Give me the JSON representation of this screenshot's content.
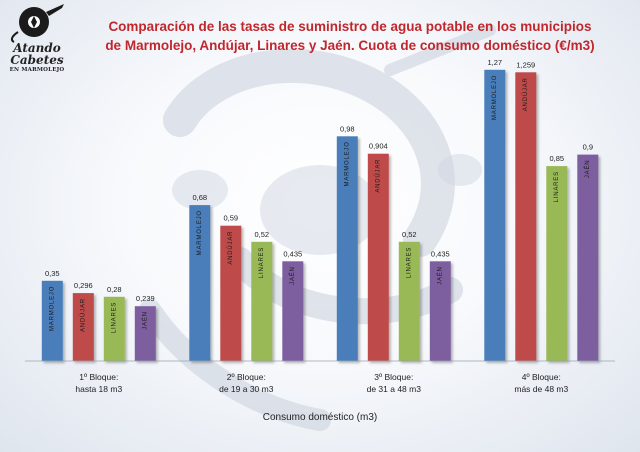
{
  "logo": {
    "line1": "Atando",
    "line2": "Cabetes",
    "line3": "EN MARMOLEJO"
  },
  "chart_data": {
    "type": "bar",
    "title": [
      "Comparación de las tasas de suministro de agua potable en los municipios",
      "de Marmolejo, Andújar, Linares y Jaén. Cuota de consumo doméstico (€/m3)"
    ],
    "xlabel": "Consumo doméstico (m3)",
    "ylabel": "",
    "ylim": [
      0,
      1.4
    ],
    "grid": false,
    "legend": "none",
    "categories": [
      [
        "1º Bloque:",
        "hasta 18 m3"
      ],
      [
        "2º Bloque:",
        "de 19 a 30 m3"
      ],
      [
        "3º Bloque:",
        "de 31 a 48 m3"
      ],
      [
        "4º Bloque:",
        "más de 48 m3"
      ]
    ],
    "series": [
      {
        "name": "MARMOLEJO",
        "color": "#4a7ebb",
        "values": [
          0.35,
          0.68,
          0.98,
          1.27
        ],
        "labels": [
          "0,35",
          "0,68",
          "0,98",
          "1,27"
        ]
      },
      {
        "name": "ANDÚJAR",
        "color": "#be4b48",
        "values": [
          0.296,
          0.59,
          0.904,
          1.259
        ],
        "labels": [
          "0,296",
          "0,59",
          "0,904",
          "1,259"
        ]
      },
      {
        "name": "LINARES",
        "color": "#98b954",
        "values": [
          0.28,
          0.52,
          0.52,
          0.85
        ],
        "labels": [
          "0,28",
          "0,52",
          "0,52",
          "0,85"
        ]
      },
      {
        "name": "JAÉN",
        "color": "#7d5fa0",
        "values": [
          0.239,
          0.435,
          0.435,
          0.9
        ],
        "labels": [
          "0,239",
          "0,435",
          "0,435",
          "0,9"
        ]
      }
    ]
  }
}
